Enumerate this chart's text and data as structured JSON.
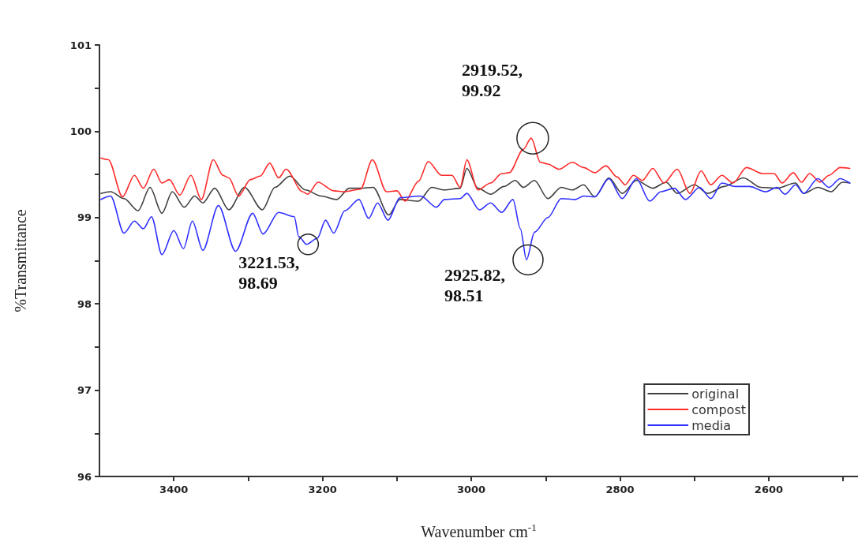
{
  "chart_data": {
    "type": "line",
    "xlabel": "Wavenumber cm$^{-1}$",
    "ylabel": "%Transmittance",
    "xlim": [
      3500,
      2480
    ],
    "ylim": [
      96,
      101
    ],
    "xticks": [
      {
        "value": 2500,
        "label": null
      },
      2600,
      {
        "value": 2700,
        "label": null
      },
      2800,
      {
        "value": 2900,
        "label": null
      },
      3000,
      {
        "value": 3100,
        "label": null
      },
      3200,
      {
        "value": 3300,
        "label": null
      },
      3400
    ],
    "yticks": [
      96,
      {
        "value": 96.5,
        "label": null
      },
      97,
      {
        "value": 97.5,
        "label": null
      },
      98,
      {
        "value": 98.5,
        "label": null
      },
      99,
      {
        "value": 99.5,
        "label": null
      },
      100,
      {
        "value": 100.5,
        "label": null
      },
      101
    ],
    "grid": false,
    "legend": "bottom right",
    "marker": "none",
    "line_style": "solid",
    "series": [
      {
        "name": "original",
        "color": "#404040",
        "x": [
          3498,
          3485,
          3467,
          3448,
          3432,
          3416,
          3402,
          3386,
          3372,
          3361,
          3345,
          3326,
          3305,
          3281,
          3264,
          3244,
          3223,
          3202,
          3181,
          3164,
          3149,
          3132,
          3111,
          3096,
          3071,
          3053,
          3036,
          3015,
          3006,
          2991,
          2974,
          2956,
          2941,
          2930,
          2915,
          2897,
          2879,
          2864,
          2849,
          2834,
          2815,
          2797,
          2778,
          2756,
          2738,
          2723,
          2700,
          2682,
          2660,
          2634,
          2611,
          2589,
          2564,
          2553,
          2534,
          2516,
          2501,
          2491
        ],
        "values": [
          99.28,
          99.3,
          99.22,
          99.08,
          99.35,
          99.05,
          99.3,
          99.12,
          99.25,
          99.17,
          99.34,
          99.09,
          99.35,
          99.09,
          99.35,
          99.48,
          99.32,
          99.25,
          99.21,
          99.34,
          99.34,
          99.35,
          99.03,
          99.21,
          99.19,
          99.35,
          99.32,
          99.34,
          99.57,
          99.34,
          99.27,
          99.36,
          99.43,
          99.35,
          99.43,
          99.22,
          99.35,
          99.32,
          99.38,
          99.24,
          99.46,
          99.28,
          99.43,
          99.34,
          99.41,
          99.28,
          99.38,
          99.28,
          99.36,
          99.46,
          99.35,
          99.34,
          99.4,
          99.28,
          99.35,
          99.3,
          99.41,
          99.4
        ]
      },
      {
        "name": "compost",
        "color": "#ff2a2a",
        "x": [
          3498,
          3488,
          3469,
          3453,
          3441,
          3427,
          3416,
          3406,
          3392,
          3377,
          3363,
          3347,
          3334,
          3326,
          3313,
          3297,
          3284,
          3271,
          3259,
          3249,
          3227,
          3220,
          3206,
          3185,
          3170,
          3149,
          3133,
          3114,
          3100,
          3089,
          3071,
          3058,
          3040,
          3026,
          3015,
          3006,
          2991,
          2974,
          2959,
          2949,
          2930,
          2919.52,
          2907,
          2897,
          2882,
          2864,
          2849,
          2834,
          2819,
          2804,
          2793,
          2782,
          2770,
          2756,
          2741,
          2723,
          2706,
          2691,
          2678,
          2663,
          2648,
          2630,
          2608,
          2593,
          2582,
          2567,
          2556,
          2545,
          2531,
          2519,
          2504,
          2491
        ],
        "values": [
          99.69,
          99.67,
          99.24,
          99.49,
          99.34,
          99.56,
          99.4,
          99.44,
          99.26,
          99.49,
          99.21,
          99.67,
          99.49,
          99.46,
          99.25,
          99.44,
          99.48,
          99.63,
          99.46,
          99.56,
          99.3,
          99.27,
          99.41,
          99.31,
          99.3,
          99.33,
          99.67,
          99.3,
          99.31,
          99.19,
          99.42,
          99.65,
          99.49,
          99.49,
          99.35,
          99.67,
          99.32,
          99.4,
          99.51,
          99.52,
          99.79,
          99.92,
          99.64,
          99.62,
          99.56,
          99.64,
          99.58,
          99.52,
          99.6,
          99.47,
          99.38,
          99.49,
          99.43,
          99.57,
          99.4,
          99.56,
          99.28,
          99.54,
          99.38,
          99.49,
          99.4,
          99.58,
          99.51,
          99.51,
          99.4,
          99.52,
          99.41,
          99.51,
          99.41,
          99.49,
          99.58,
          99.57
        ]
      },
      {
        "name": "media",
        "color": "#3030ff",
        "x": [
          3498,
          3485,
          3467,
          3453,
          3441,
          3430,
          3416,
          3400,
          3387,
          3375,
          3361,
          3340,
          3317,
          3294,
          3280,
          3259,
          3238,
          3232,
          3221.53,
          3207,
          3196,
          3185,
          3170,
          3151,
          3138,
          3126,
          3112,
          3096,
          3068,
          3047,
          3036,
          3015,
          3006,
          2989,
          2974,
          2959,
          2944,
          2934,
          2925.82,
          2915,
          2897,
          2879,
          2860,
          2849,
          2834,
          2815,
          2797,
          2778,
          2760,
          2745,
          2727,
          2712,
          2693,
          2678,
          2663,
          2645,
          2626,
          2604,
          2589,
          2578,
          2564,
          2553,
          2534,
          2519,
          2504,
          2491
        ],
        "values": [
          99.21,
          99.25,
          98.82,
          98.96,
          98.87,
          99.01,
          98.57,
          98.85,
          98.64,
          98.96,
          98.62,
          99.14,
          98.61,
          99.05,
          98.81,
          99.06,
          99.01,
          98.78,
          98.69,
          98.76,
          98.97,
          98.82,
          99.08,
          99.21,
          98.99,
          99.17,
          98.97,
          99.23,
          99.25,
          99.12,
          99.21,
          99.22,
          99.28,
          99.09,
          99.17,
          99.06,
          99.21,
          98.87,
          98.51,
          98.83,
          99.0,
          99.22,
          99.21,
          99.25,
          99.24,
          99.45,
          99.22,
          99.45,
          99.19,
          99.3,
          99.34,
          99.21,
          99.35,
          99.22,
          99.4,
          99.36,
          99.36,
          99.3,
          99.35,
          99.27,
          99.38,
          99.28,
          99.45,
          99.35,
          99.45,
          99.4
        ]
      }
    ],
    "annotations": [
      {
        "text": "3221.53, 98.69",
        "x": 3221.53,
        "y": 98.69
      },
      {
        "text": "2919.52, 99.92",
        "x": 2919.52,
        "y": 99.92
      },
      {
        "text": "2925.82, 98.51",
        "x": 2925.82,
        "y": 98.51
      }
    ]
  }
}
